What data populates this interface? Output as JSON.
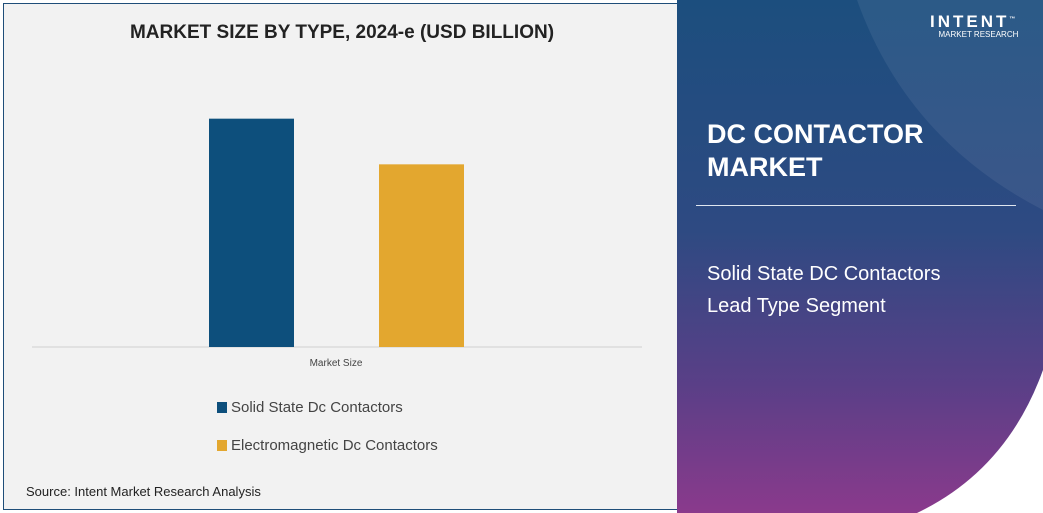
{
  "chart_data": {
    "type": "bar",
    "title": "MARKET SIZE BY TYPE, 2024-e (USD BILLION)",
    "categories": [
      "Market Size"
    ],
    "series": [
      {
        "name": "Solid State Dc Contactors",
        "values": [
          1.0
        ],
        "color": "#0d4f7c"
      },
      {
        "name": "Electromagnetic Dc Contactors",
        "values": [
          0.8
        ],
        "color": "#e3a72f"
      }
    ],
    "ylim": [
      0,
      1.2
    ],
    "grid": false,
    "legend": "bottom"
  },
  "source": "Source: Intent Market Research Analysis",
  "side": {
    "title_line1": "DC CONTACTOR",
    "title_line2": "MARKET",
    "sub_line1": "Solid State DC Contactors",
    "sub_line2": "Lead Type Segment"
  },
  "logo": {
    "name": "INTENT",
    "tm": "™",
    "tagline": "MARKET RESEARCH"
  }
}
